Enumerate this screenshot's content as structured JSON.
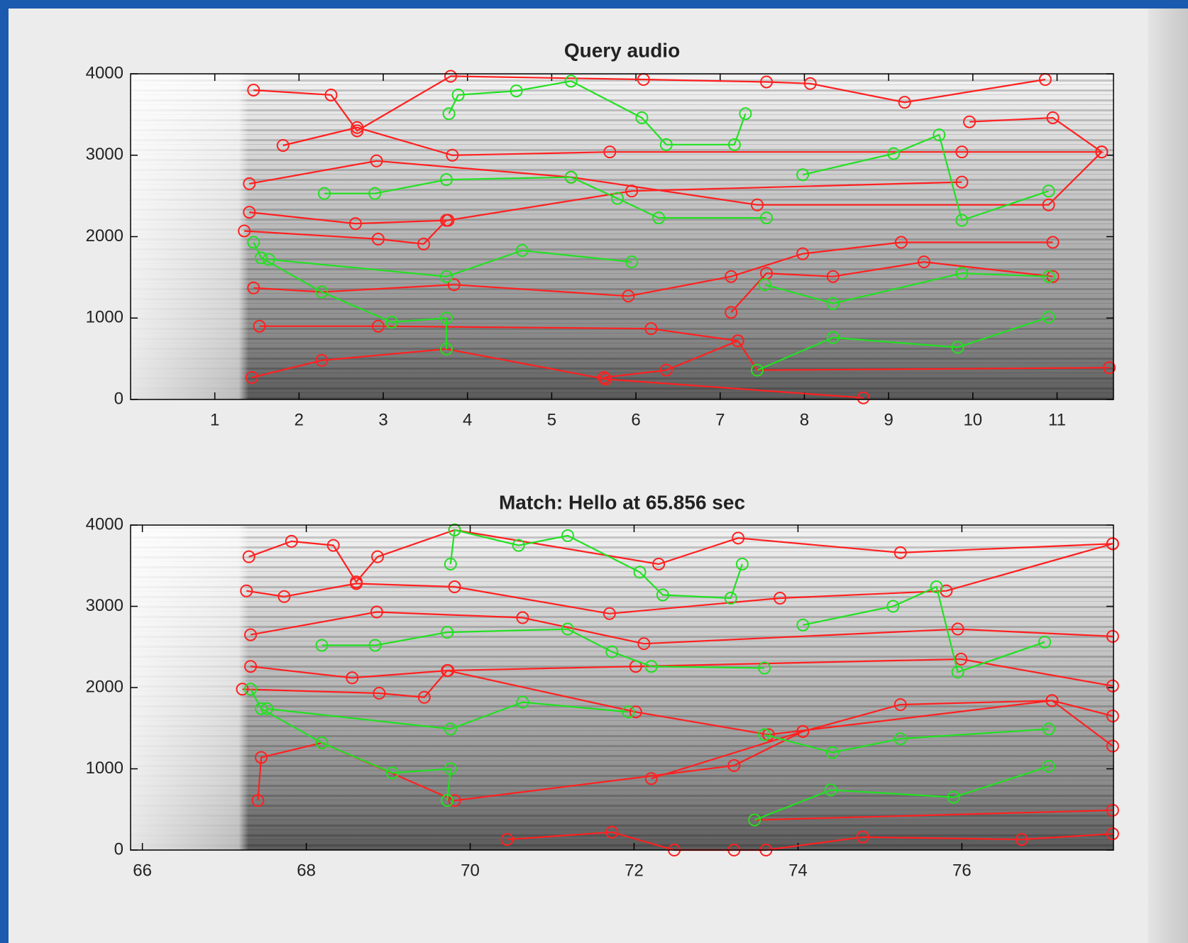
{
  "chart_data": [
    {
      "type": "line",
      "title": "Query audio",
      "xlim": [
        0,
        11.67
      ],
      "xticks": [
        1,
        2,
        3,
        4,
        5,
        6,
        7,
        8,
        9,
        10,
        11
      ],
      "ylim": [
        0,
        4000
      ],
      "yticks": [
        0,
        1000,
        2000,
        3000,
        4000
      ],
      "series": [
        {
          "color": "#ff2020",
          "x": [
            1.46,
            2.38,
            2.69,
            3.8,
            6.09,
            7.55,
            8.07,
            9.19,
            10.86,
            null,
            1.81,
            2.69,
            3.82,
            5.69,
            9.87,
            11.53,
            10.95,
            9.96,
            null,
            1.41,
            2.92,
            5.23,
            7.44,
            10.9,
            11.53,
            null,
            1.41,
            2.67,
            3.77,
            5.95,
            9.87,
            null,
            1.35,
            2.94,
            3.48,
            3.75,
            null,
            1.46,
            2.27,
            3.84,
            5.91,
            7.13,
            7.98,
            9.15,
            10.95,
            null,
            1.53,
            2.94,
            6.18,
            7.21,
            7.44,
            11.62,
            null,
            1.44,
            2.27,
            3.75,
            5.64,
            8.7,
            null,
            7.13,
            7.55,
            8.34,
            9.42,
            10.95,
            null,
            5.62,
            6.36,
            7.21
          ],
          "y": [
            3800,
            3740,
            3300,
            3970,
            3930,
            3900,
            3880,
            3650,
            3930,
            null,
            3120,
            3340,
            3000,
            3040,
            3040,
            3040,
            3460,
            3410,
            null,
            2650,
            2930,
            2730,
            2390,
            2390,
            3040,
            null,
            2300,
            2160,
            2200,
            2560,
            2670,
            null,
            2070,
            1970,
            1910,
            2200,
            null,
            1370,
            1320,
            1410,
            1270,
            1510,
            1790,
            1930,
            1930,
            null,
            900,
            900,
            870,
            720,
            360,
            390,
            null,
            270,
            480,
            620,
            250,
            20,
            null,
            1070,
            1550,
            1510,
            1690,
            1510,
            null,
            270,
            360,
            720
          ]
        },
        {
          "color": "#22e022",
          "x": [
            3.78,
            3.89,
            4.58,
            5.23,
            6.07,
            6.36,
            7.17,
            7.3,
            null,
            2.3,
            2.9,
            3.75,
            5.23,
            5.78,
            6.27,
            7.55,
            null,
            1.46,
            1.55,
            2.27,
            3.1,
            3.75,
            3.75,
            null,
            1.64,
            3.75,
            4.65,
            5.95,
            null,
            7.44,
            8.34,
            9.82,
            10.9,
            null,
            7.53,
            8.34,
            9.87,
            10.9,
            null,
            7.98,
            9.06,
            9.6,
            9.87,
            10.9
          ],
          "y": [
            3510,
            3740,
            3790,
            3910,
            3460,
            3130,
            3130,
            3510,
            null,
            2530,
            2530,
            2700,
            2730,
            2470,
            2230,
            2230,
            null,
            1930,
            1740,
            1320,
            950,
            1000,
            620,
            null,
            1720,
            1510,
            1830,
            1690,
            null,
            360,
            760,
            640,
            1010,
            null,
            1410,
            1180,
            1550,
            1510,
            null,
            2760,
            3020,
            3250,
            2200,
            2560
          ]
        }
      ]
    },
    {
      "type": "line",
      "title": "Match: Hello at 65.856 sec",
      "xlim": [
        65.856,
        77.85
      ],
      "xticks": [
        66,
        68,
        70,
        72,
        74,
        76
      ],
      "ylim": [
        0,
        4000
      ],
      "yticks": [
        0,
        1000,
        2000,
        3000,
        4000
      ],
      "series": [
        {
          "color": "#ff2020",
          "x": [
            67.3,
            67.82,
            68.33,
            68.61,
            68.87,
            69.81,
            72.3,
            73.27,
            75.25,
            77.84,
            null,
            67.27,
            67.73,
            68.61,
            69.81,
            71.7,
            73.78,
            75.81,
            77.84,
            null,
            67.32,
            68.86,
            70.64,
            72.12,
            75.95,
            77.84,
            null,
            67.32,
            68.56,
            69.73,
            72.02,
            75.99,
            77.84,
            null,
            67.22,
            68.89,
            69.44,
            69.72,
            72.02,
            73.64,
            77.1,
            77.84,
            null,
            67.41,
            67.45,
            68.19,
            69.81,
            73.22,
            74.06,
            75.25,
            77.1,
            77.84,
            null,
            70.45,
            71.73,
            72.49,
            73.22,
            73.61,
            74.79,
            76.73,
            77.84,
            null,
            73.47,
            77.84,
            null,
            72.21,
            74.06
          ],
          "y": [
            3610,
            3800,
            3750,
            3300,
            3610,
            3940,
            3520,
            3840,
            3660,
            3770,
            null,
            3190,
            3120,
            3280,
            3240,
            2910,
            3100,
            3190,
            3770,
            null,
            2650,
            2930,
            2860,
            2540,
            2720,
            2630,
            null,
            2260,
            2120,
            2210,
            2260,
            2350,
            2020,
            null,
            1980,
            1930,
            1880,
            2210,
            1700,
            1420,
            1840,
            1650,
            null,
            610,
            1140,
            1320,
            610,
            1040,
            1460,
            1790,
            1840,
            1280,
            null,
            130,
            220,
            0,
            0,
            0,
            160,
            130,
            200,
            null,
            370,
            490,
            null,
            880,
            1460
          ]
        },
        {
          "color": "#22e022",
          "x": [
            69.76,
            69.81,
            70.59,
            71.19,
            72.07,
            72.35,
            73.18,
            73.32,
            null,
            68.19,
            68.84,
            69.72,
            71.19,
            71.73,
            72.21,
            73.59,
            null,
            67.32,
            67.45,
            68.19,
            69.05,
            69.76,
            69.72,
            null,
            67.52,
            69.76,
            70.64,
            71.93,
            null,
            73.47,
            74.4,
            75.9,
            77.06,
            null,
            73.59,
            74.42,
            75.25,
            77.06,
            null,
            74.06,
            75.16,
            75.69,
            75.95,
            77.01
          ],
          "y": [
            3520,
            3940,
            3750,
            3870,
            3420,
            3140,
            3100,
            3520,
            null,
            2520,
            2520,
            2680,
            2720,
            2440,
            2260,
            2240,
            null,
            1980,
            1740,
            1320,
            950,
            1000,
            610,
            null,
            1740,
            1490,
            1820,
            1700,
            null,
            370,
            740,
            650,
            1030,
            null,
            1420,
            1200,
            1370,
            1490,
            null,
            2770,
            3000,
            3240,
            2190,
            2560
          ]
        }
      ]
    }
  ]
}
